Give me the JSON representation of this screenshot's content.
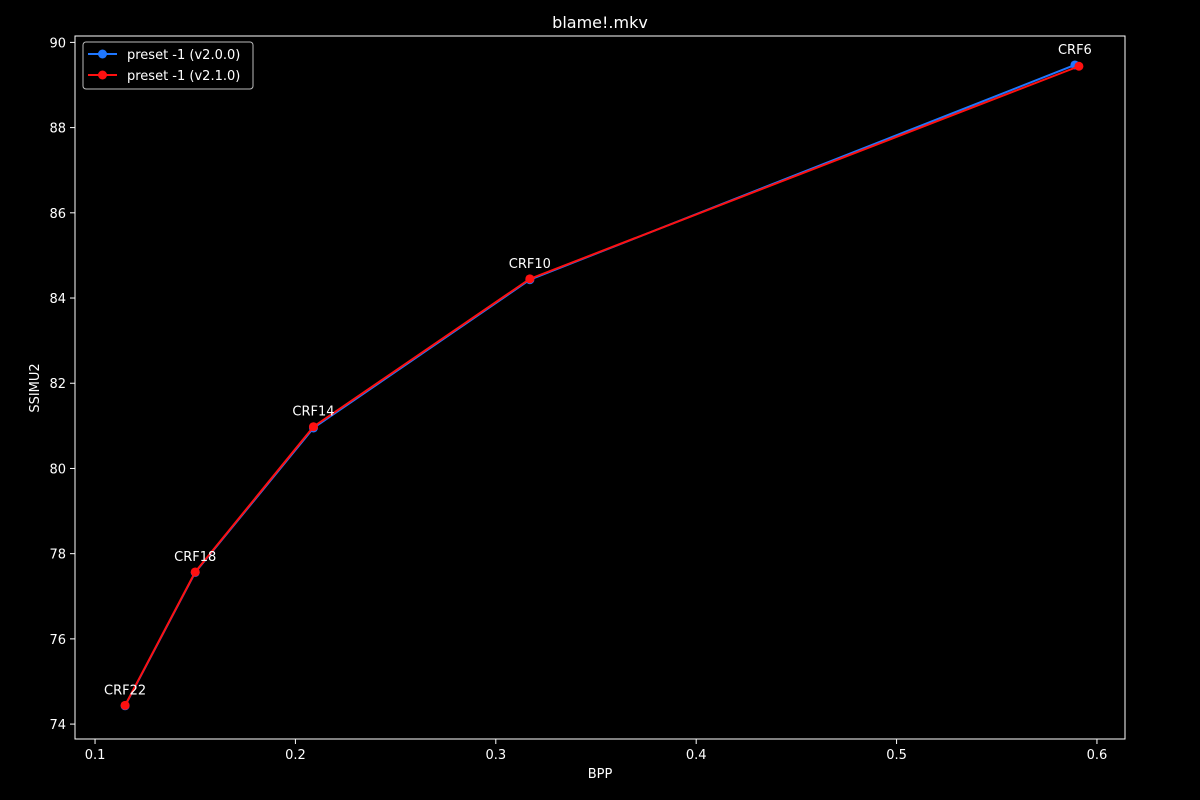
{
  "chart_data": {
    "type": "line",
    "title": "blame!.mkv",
    "xlabel": "BPP",
    "ylabel": "SSIMU2",
    "xlim": [
      0.09,
      0.614
    ],
    "ylim": [
      73.65,
      90.15
    ],
    "xticks": [
      0.1,
      0.2,
      0.3,
      0.4,
      0.5,
      0.6
    ],
    "xtick_labels": [
      "0.1",
      "0.2",
      "0.3",
      "0.4",
      "0.5",
      "0.6"
    ],
    "yticks": [
      74,
      76,
      78,
      80,
      82,
      84,
      86,
      88,
      90
    ],
    "ytick_labels": [
      "74",
      "76",
      "78",
      "80",
      "82",
      "84",
      "86",
      "88",
      "90"
    ],
    "grid": false,
    "legend": "top-left",
    "series": [
      {
        "name": "preset -1 (v2.0.0)",
        "color": "#1f77ff",
        "x": [
          0.115,
          0.15,
          0.209,
          0.317,
          0.589
        ],
        "y": [
          74.43,
          77.56,
          80.95,
          84.43,
          89.47
        ]
      },
      {
        "name": "preset -1 (v2.1.0)",
        "color": "#ff1010",
        "x": [
          0.115,
          0.15,
          0.209,
          0.317,
          0.591
        ],
        "y": [
          74.44,
          77.57,
          80.98,
          84.45,
          89.44
        ]
      }
    ],
    "annotations": [
      {
        "text": "CRF22",
        "x": 0.115,
        "y": 74.44
      },
      {
        "text": "CRF18",
        "x": 0.15,
        "y": 77.57
      },
      {
        "text": "CRF14",
        "x": 0.209,
        "y": 80.98
      },
      {
        "text": "CRF10",
        "x": 0.317,
        "y": 84.45
      },
      {
        "text": "CRF6",
        "x": 0.589,
        "y": 89.47
      }
    ]
  }
}
